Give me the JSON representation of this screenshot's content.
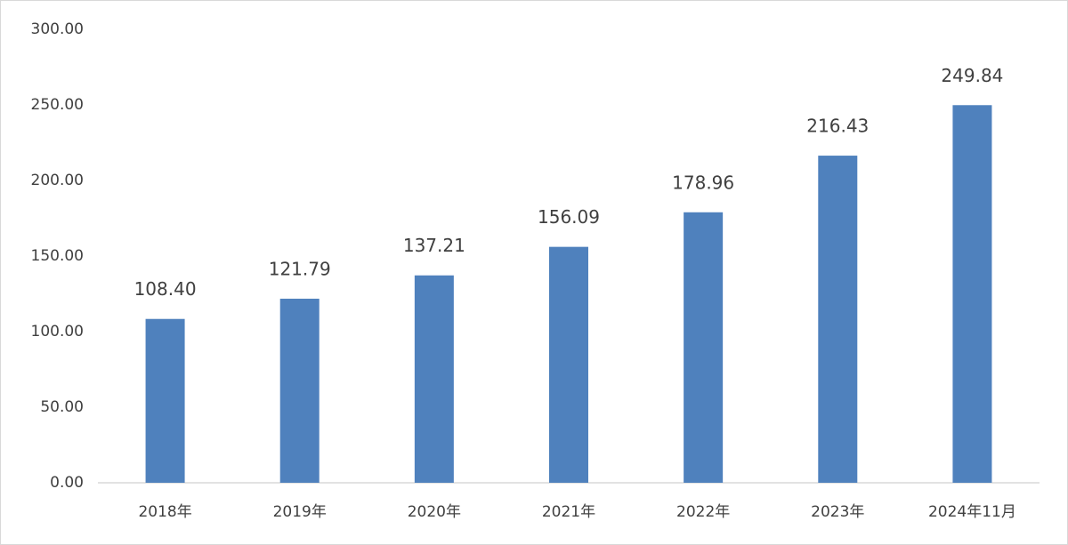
{
  "chart_data": {
    "type": "bar",
    "categories": [
      "2018年",
      "2019年",
      "2020年",
      "2021年",
      "2022年",
      "2023年",
      "2024年11月"
    ],
    "values": [
      108.4,
      121.79,
      137.21,
      156.09,
      178.96,
      216.43,
      249.84
    ],
    "value_labels": [
      "108.40",
      "121.79",
      "137.21",
      "156.09",
      "178.96",
      "216.43",
      "249.84"
    ],
    "color": "#4f81bd",
    "ylim": [
      0,
      300
    ],
    "yticks": [
      {
        "value": 0,
        "label": "0.00"
      },
      {
        "value": 50,
        "label": "50.00"
      },
      {
        "value": 100,
        "label": "100.00"
      },
      {
        "value": 150,
        "label": "150.00"
      },
      {
        "value": 200,
        "label": "200.00"
      },
      {
        "value": 250,
        "label": "250.00"
      },
      {
        "value": 300,
        "label": "300.00"
      }
    ],
    "grid": false
  }
}
